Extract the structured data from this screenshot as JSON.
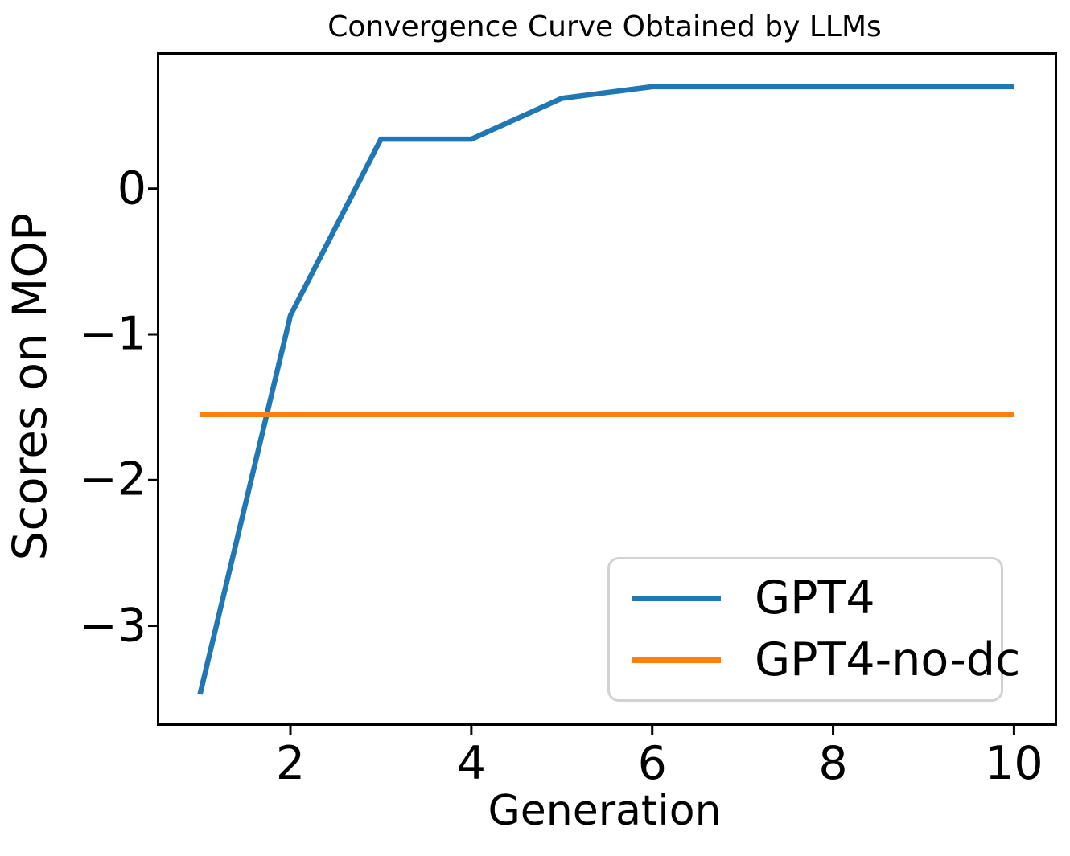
{
  "chart_data": {
    "type": "line",
    "title": "Convergence Curve Obtained by LLMs",
    "xlabel": "Generation",
    "ylabel": "Scores on MOP",
    "x": [
      1,
      2,
      3,
      4,
      5,
      6,
      7,
      8,
      9,
      10
    ],
    "series": [
      {
        "name": "GPT4",
        "color": "#1f77b4",
        "values": [
          -3.47,
          -0.87,
          0.34,
          0.34,
          0.62,
          0.7,
          0.7,
          0.7,
          0.7,
          0.7
        ]
      },
      {
        "name": "GPT4-no-dc",
        "color": "#ff7f0e",
        "values": [
          -1.55,
          -1.55,
          -1.55,
          -1.55,
          -1.55,
          -1.55,
          -1.55,
          -1.55,
          -1.55,
          -1.55
        ]
      }
    ],
    "xlim": [
      0.55,
      10.45
    ],
    "ylim": [
      -3.67,
      0.92
    ],
    "xticks": {
      "values": [
        2,
        4,
        6,
        8,
        10
      ],
      "labels": [
        "2",
        "4",
        "6",
        "8",
        "10"
      ]
    },
    "yticks": {
      "values": [
        0,
        -1,
        -2,
        -3
      ],
      "labels": [
        "0",
        "−1",
        "−2",
        "−3"
      ]
    },
    "grid": false,
    "legend": {
      "position": "lower right",
      "entries": [
        "GPT4",
        "GPT4-no-dc"
      ]
    },
    "line_width": 6.5,
    "axis_color": "#000000",
    "legend_border_color": "#d2d2d2"
  }
}
